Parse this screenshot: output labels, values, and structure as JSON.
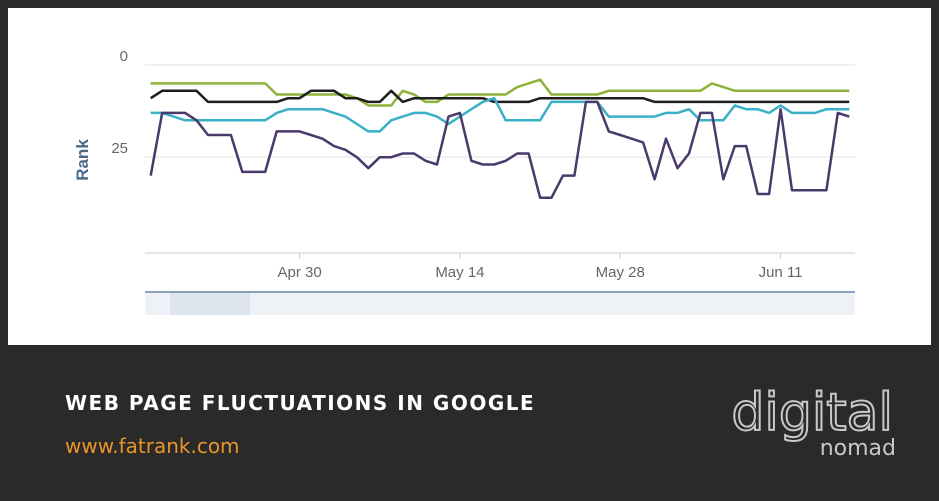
{
  "chart_data": {
    "type": "line",
    "ylabel": "Rank",
    "x": [
      107,
      108,
      109,
      110,
      111,
      112,
      113,
      114,
      115,
      116,
      117,
      118,
      119,
      120,
      121,
      122,
      123,
      124,
      125,
      126,
      127,
      128,
      129,
      130,
      131,
      132,
      133,
      134,
      135,
      136,
      137,
      138,
      139,
      140,
      141,
      142,
      143,
      144,
      145,
      146,
      147,
      148,
      149,
      150,
      151,
      152,
      153,
      154,
      155,
      156,
      157,
      158,
      159,
      160,
      161,
      162,
      163,
      164,
      165,
      166,
      167,
      168
    ],
    "xlim": [
      106.5,
      168.5
    ],
    "xticks": [
      {
        "value": 120,
        "label": "Apr 30"
      },
      {
        "value": 134,
        "label": "May 14"
      },
      {
        "value": 148,
        "label": "May 28"
      },
      {
        "value": 162,
        "label": "Jun 11"
      }
    ],
    "ylim": [
      0,
      51
    ],
    "yticks": [
      0,
      25
    ],
    "y_reversed": true,
    "grid": true,
    "series": [
      {
        "color": "#8db33a",
        "values": [
          5,
          5,
          5,
          5,
          5,
          5,
          5,
          5,
          5,
          5,
          5,
          8,
          8,
          8,
          8,
          8,
          8,
          8,
          9,
          11,
          11,
          11,
          7,
          8,
          10,
          10,
          8,
          8,
          8,
          8,
          8,
          8,
          6,
          5,
          4,
          8,
          8,
          8,
          8,
          8,
          7,
          7,
          7,
          7,
          7,
          7,
          7,
          7,
          7,
          5,
          6,
          7,
          7,
          7,
          7,
          7,
          7,
          7,
          7,
          7,
          7,
          7
        ]
      },
      {
        "color": "#1e1e1e",
        "values": [
          9,
          7,
          7,
          7,
          7,
          10,
          10,
          10,
          10,
          10,
          10,
          10,
          9,
          9,
          7,
          7,
          7,
          9,
          9,
          10,
          10,
          7,
          10,
          9,
          9,
          9,
          9,
          9,
          9,
          9,
          10,
          10,
          10,
          10,
          9,
          9,
          9,
          9,
          9,
          9,
          9,
          9,
          9,
          9,
          10,
          10,
          10,
          10,
          10,
          10,
          10,
          10,
          10,
          10,
          10,
          10,
          10,
          10,
          10,
          10,
          10,
          10
        ]
      },
      {
        "color": "#3ab0c8",
        "values": [
          13,
          13,
          14,
          15,
          15,
          15,
          15,
          15,
          15,
          15,
          15,
          13,
          12,
          12,
          12,
          12,
          13,
          14,
          16,
          18,
          18,
          15,
          14,
          13,
          13,
          14,
          16,
          14,
          12,
          10,
          9,
          15,
          15,
          15,
          15,
          10,
          10,
          10,
          10,
          10,
          14,
          14,
          14,
          14,
          14,
          13,
          13,
          12,
          15,
          15,
          15,
          11,
          12,
          12,
          13,
          11,
          13,
          13,
          13,
          12,
          12,
          12
        ]
      },
      {
        "color": "#4a3a6b",
        "values": [
          30,
          13,
          13,
          13,
          15,
          19,
          19,
          19,
          29,
          29,
          29,
          18,
          18,
          18,
          19,
          20,
          22,
          23,
          25,
          28,
          25,
          25,
          24,
          24,
          26,
          27,
          14,
          13,
          26,
          27,
          27,
          26,
          24,
          24,
          36,
          36,
          30,
          30,
          10,
          10,
          18,
          19,
          20,
          21,
          31,
          20,
          28,
          24,
          13,
          13,
          31,
          22,
          22,
          35,
          35,
          12,
          34,
          34,
          34,
          34,
          13,
          14
        ]
      }
    ]
  },
  "footer": {
    "caption": "WEB PAGE FLUCTUATIONS IN GOOGLE",
    "url": "www.fatrank.com",
    "logo_top": "digital",
    "logo_bottom": "nomad"
  }
}
